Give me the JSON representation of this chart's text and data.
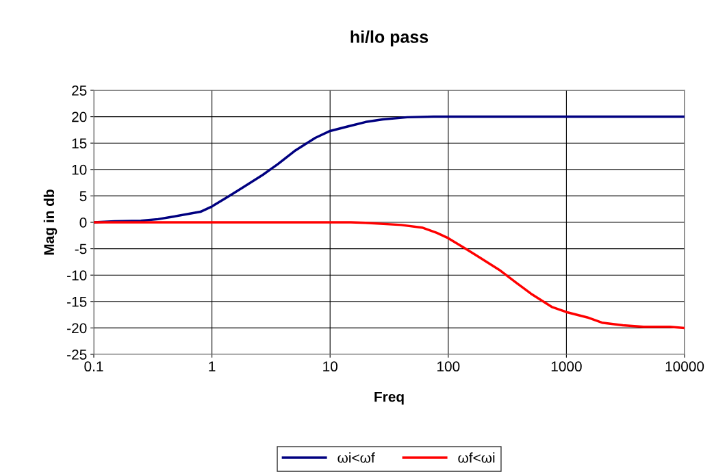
{
  "chart_data": {
    "type": "line",
    "title": "hi/lo pass",
    "xlabel": "Freq",
    "ylabel": "Mag in db",
    "log": "x",
    "xlim": [
      0.1,
      10000
    ],
    "xticks": [
      0.1,
      1,
      10,
      100,
      1000,
      10000
    ],
    "ylim": [
      -25,
      25
    ],
    "yticks": [
      -25,
      -20,
      -15,
      -10,
      -5,
      0,
      5,
      10,
      15,
      20,
      25
    ],
    "grid": true,
    "legend": "bottom",
    "marker": "none",
    "line_style": "solid",
    "series": [
      {
        "name": "ωi<ωf",
        "color": "#000080",
        "x": [
          0.1,
          0.15,
          0.25,
          0.35,
          0.45,
          0.8,
          1,
          1.4,
          1.8,
          2.7,
          3.6,
          5,
          7.5,
          10,
          15,
          20,
          28,
          45,
          75,
          10000
        ],
        "values": [
          0,
          0.2,
          0.3,
          0.6,
          1,
          2,
          3,
          5,
          6.5,
          9,
          11,
          13.5,
          16,
          17.3,
          18.3,
          19,
          19.5,
          19.9,
          20,
          20
        ]
      },
      {
        "name": "ωf<ωi",
        "color": "#ff0000",
        "x": [
          0.1,
          15,
          20,
          40,
          60,
          80,
          100,
          140,
          180,
          270,
          380,
          500,
          750,
          1000,
          1500,
          2000,
          3000,
          4500,
          7500,
          10000
        ],
        "values": [
          0,
          0,
          -0.1,
          -0.5,
          -1,
          -2,
          -3,
          -5,
          -6.5,
          -9,
          -11.5,
          -13.5,
          -16,
          -17,
          -18,
          -19,
          -19.5,
          -19.8,
          -19.8,
          -20
        ]
      }
    ]
  }
}
